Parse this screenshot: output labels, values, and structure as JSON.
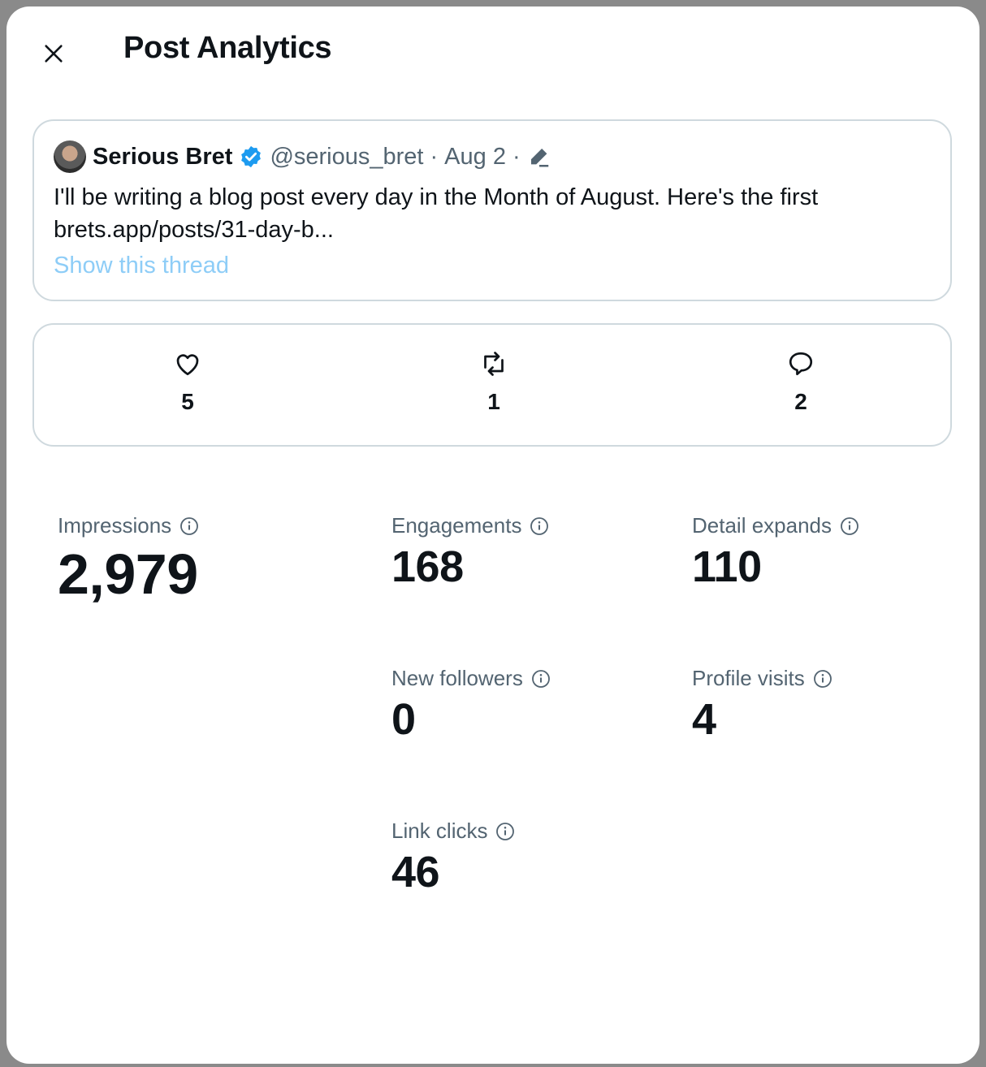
{
  "header": {
    "title": "Post Analytics",
    "close_icon": "close-icon"
  },
  "tweet": {
    "author_name": "Serious Bret",
    "handle": "@serious_bret",
    "separator": "·",
    "date": "Aug 2",
    "text": "I'll be writing a blog post every day in the Month of August. Here's the first",
    "link": "brets.app/posts/31-day-b...",
    "show_thread": "Show this thread",
    "verified_color": "#1d9bf0"
  },
  "counts": {
    "likes": "5",
    "reposts": "1",
    "replies": "2"
  },
  "metrics": {
    "impressions": {
      "label": "Impressions",
      "value": "2,979"
    },
    "engagements": {
      "label": "Engagements",
      "value": "168"
    },
    "detail_expands": {
      "label": "Detail expands",
      "value": "110"
    },
    "new_followers": {
      "label": "New followers",
      "value": "0"
    },
    "profile_visits": {
      "label": "Profile visits",
      "value": "4"
    },
    "link_clicks": {
      "label": "Link clicks",
      "value": "46"
    }
  }
}
